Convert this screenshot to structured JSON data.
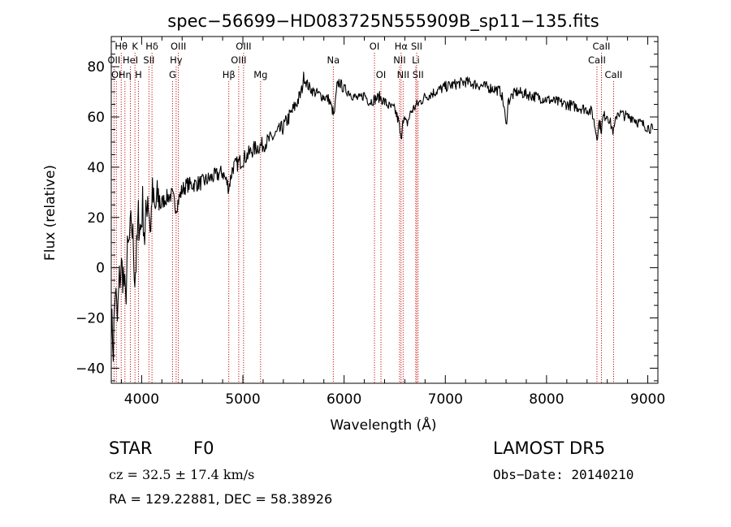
{
  "chart_data": {
    "type": "line",
    "title": "spec−56699−HD083725N555909B_sp11−135.fits",
    "xlabel": "Wavelength (Å)",
    "ylabel": "Flux (relative)",
    "xlim": [
      3700,
      9100
    ],
    "ylim": [
      -46,
      92
    ],
    "x_ticks": [
      4000,
      5000,
      6000,
      7000,
      8000,
      9000
    ],
    "y_ticks": [
      -40,
      -20,
      0,
      20,
      40,
      60,
      80
    ],
    "y_tick_labels": [
      "−40",
      "−20",
      "0",
      "20",
      "40",
      "60",
      "80"
    ],
    "grid": false,
    "series": [
      {
        "x": [
          3700,
          3720,
          3740,
          3760,
          3780,
          3800,
          3820,
          3840,
          3860,
          3880,
          3900,
          3920,
          3933,
          3950,
          3968,
          3990,
          4010,
          4030,
          4060,
          4090,
          4101,
          4130,
          4160,
          4200,
          4250,
          4300,
          4340,
          4400,
          4450,
          4500,
          4600,
          4700,
          4800,
          4861,
          4900,
          5000,
          5100,
          5200,
          5300,
          5400,
          5500,
          5560,
          5580,
          5600,
          5650,
          5700,
          5750,
          5800,
          5850,
          5890,
          5900,
          5930,
          5950,
          6000,
          6050,
          6100,
          6150,
          6200,
          6250,
          6300,
          6350,
          6400,
          6450,
          6500,
          6540,
          6563,
          6580,
          6620,
          6660,
          6700,
          6750,
          6800,
          6900,
          7000,
          7100,
          7200,
          7300,
          7400,
          7500,
          7550,
          7580,
          7600,
          7620,
          7650,
          7700,
          7800,
          7900,
          8000,
          8100,
          8200,
          8300,
          8400,
          8450,
          8498,
          8520,
          8542,
          8560,
          8600,
          8662,
          8700,
          8750,
          8800,
          8850,
          8900,
          8950,
          9000,
          9050
        ],
        "y": [
          -20,
          -32,
          -8,
          -22,
          -5,
          0,
          -3,
          -14,
          5,
          10,
          18,
          8,
          -4,
          5,
          20,
          15,
          25,
          12,
          30,
          14,
          30,
          22,
          28,
          26,
          28,
          29,
          24,
          31,
          33,
          33,
          34,
          36,
          38,
          32,
          40,
          43,
          47,
          49,
          52,
          56,
          63,
          68,
          70,
          76,
          72,
          70,
          69,
          68,
          67,
          62,
          60,
          72,
          74,
          71,
          70,
          68,
          67,
          69,
          66,
          67,
          68,
          66,
          64,
          63,
          58,
          50,
          60,
          57,
          62,
          64,
          66,
          68,
          70,
          72,
          73,
          74,
          73,
          72,
          71,
          70,
          64,
          56,
          66,
          68,
          70,
          69,
          68,
          67,
          66,
          65,
          64,
          63,
          62,
          52,
          58,
          55,
          60,
          61,
          54,
          62,
          61,
          60,
          60,
          58,
          57,
          56,
          55
        ]
      }
    ],
    "spectral_lines": [
      {
        "label": "Hθ",
        "wavelength": 3798,
        "row": 0
      },
      {
        "label": "K",
        "wavelength": 3934,
        "row": 0
      },
      {
        "label": "Hδ",
        "wavelength": 4102,
        "row": 0
      },
      {
        "label": "OIII",
        "wavelength": 4363,
        "row": 0
      },
      {
        "label": "OIII",
        "wavelength": 5007,
        "row": 0
      },
      {
        "label": "OI",
        "wavelength": 6300,
        "row": 0
      },
      {
        "label": "Hα",
        "wavelength": 6563,
        "row": 0
      },
      {
        "label": "SII",
        "wavelength": 6717,
        "row": 0
      },
      {
        "label": "CaII",
        "wavelength": 8542,
        "row": 0
      },
      {
        "label": "OII",
        "wavelength": 3727,
        "row": 1
      },
      {
        "label": "HeI",
        "wavelength": 3889,
        "row": 1
      },
      {
        "label": "SII",
        "wavelength": 4072,
        "row": 1
      },
      {
        "label": "Hγ",
        "wavelength": 4341,
        "row": 1
      },
      {
        "label": "OIII",
        "wavelength": 4959,
        "row": 1
      },
      {
        "label": "Na",
        "wavelength": 5893,
        "row": 1
      },
      {
        "label": "NII",
        "wavelength": 6548,
        "row": 1
      },
      {
        "label": "Li",
        "wavelength": 6708,
        "row": 1
      },
      {
        "label": "CaII",
        "wavelength": 8498,
        "row": 1
      },
      {
        "label": "OI",
        "wavelength": 3750,
        "row": 2
      },
      {
        "label": "Hη",
        "wavelength": 3835,
        "row": 2
      },
      {
        "label": "H",
        "wavelength": 3968,
        "row": 2
      },
      {
        "label": "G",
        "wavelength": 4305,
        "row": 2
      },
      {
        "label": "Hβ",
        "wavelength": 4861,
        "row": 2
      },
      {
        "label": "Mg",
        "wavelength": 5175,
        "row": 2
      },
      {
        "label": "OI",
        "wavelength": 6364,
        "row": 2
      },
      {
        "label": "NII",
        "wavelength": 6583,
        "row": 2
      },
      {
        "label": "SII",
        "wavelength": 6731,
        "row": 2
      },
      {
        "label": "CaII",
        "wavelength": 8662,
        "row": 2
      }
    ]
  },
  "info": {
    "object_class": "STAR",
    "subclass": "F0",
    "survey": "LAMOST DR5",
    "cz": "cz = 32.5 ± 17.4 km/s",
    "obs_date": "Obs−Date: 20140210",
    "coords": "RA = 129.22881, DEC =  58.38926"
  }
}
